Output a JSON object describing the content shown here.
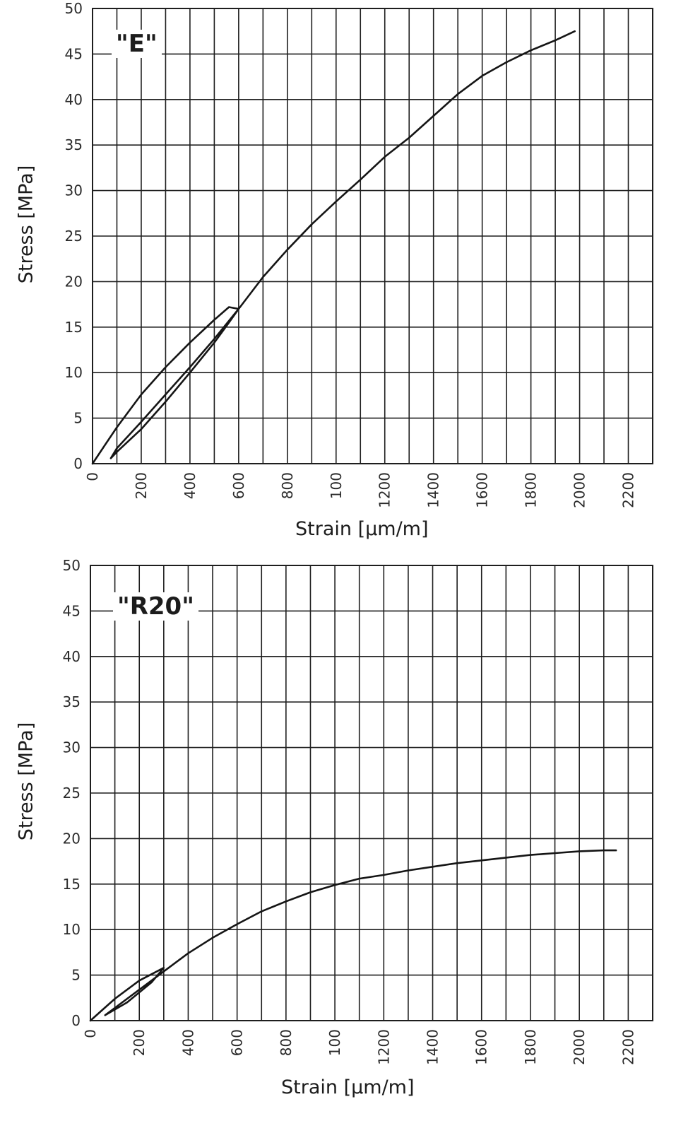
{
  "chart_data": [
    {
      "type": "line",
      "title": "\"E\"",
      "xlabel": "Strain [μm/m]",
      "ylabel": "Stress [MPa]",
      "xlim": [
        0,
        2300
      ],
      "ylim": [
        0,
        50
      ],
      "x_ticks": [
        "0",
        "200",
        "400",
        "600",
        "800",
        "100",
        "1200",
        "1400",
        "1600",
        "1800",
        "2000",
        "2200"
      ],
      "y_ticks": [
        "0",
        "5",
        "10",
        "15",
        "20",
        "25",
        "30",
        "35",
        "40",
        "45",
        "50"
      ],
      "grid": true,
      "series": [
        {
          "name": "",
          "x": [
            0,
            50,
            100,
            200,
            300,
            400,
            500,
            560,
            600,
            560,
            500,
            400,
            300,
            200,
            100,
            75,
            100,
            200,
            300,
            400,
            500,
            600,
            700,
            800,
            900,
            1000,
            1100,
            1200,
            1300,
            1400,
            1500,
            1600,
            1700,
            1800,
            1900,
            1980
          ],
          "y": [
            0,
            2,
            4,
            7.6,
            10.6,
            13.3,
            15.8,
            17.2,
            17.0,
            15.5,
            13.3,
            10.0,
            6.8,
            3.8,
            1.3,
            0.6,
            1.7,
            4.6,
            7.6,
            10.6,
            13.7,
            17.0,
            20.5,
            23.5,
            26.3,
            28.8,
            31.2,
            33.7,
            35.8,
            38.2,
            40.6,
            42.6,
            44.1,
            45.4,
            46.5,
            47.5
          ]
        }
      ]
    },
    {
      "type": "line",
      "title": "\"R20\"",
      "xlabel": "Strain [μm/m]",
      "ylabel": "Stress [MPa]",
      "xlim": [
        0,
        2300
      ],
      "ylim": [
        0,
        50
      ],
      "x_ticks": [
        "0",
        "200",
        "400",
        "600",
        "800",
        "100",
        "1200",
        "1400",
        "1600",
        "1800",
        "2000",
        "2200"
      ],
      "y_ticks": [
        "0",
        "5",
        "10",
        "15",
        "20",
        "25",
        "30",
        "35",
        "40",
        "45",
        "50"
      ],
      "grid": true,
      "series": [
        {
          "name": "",
          "x": [
            0,
            50,
            100,
            200,
            300,
            250,
            150,
            60,
            100,
            200,
            300,
            400,
            500,
            600,
            700,
            800,
            900,
            1000,
            1100,
            1200,
            1300,
            1400,
            1500,
            1600,
            1700,
            1800,
            1900,
            2000,
            2100,
            2150
          ],
          "y": [
            0,
            1.2,
            2.4,
            4.4,
            5.8,
            4.2,
            2.0,
            0.6,
            1.4,
            3.4,
            5.4,
            7.4,
            9.1,
            10.6,
            12.0,
            13.1,
            14.1,
            14.9,
            15.6,
            16.0,
            16.5,
            16.9,
            17.3,
            17.6,
            17.9,
            18.2,
            18.4,
            18.6,
            18.7,
            18.7
          ]
        }
      ]
    }
  ]
}
